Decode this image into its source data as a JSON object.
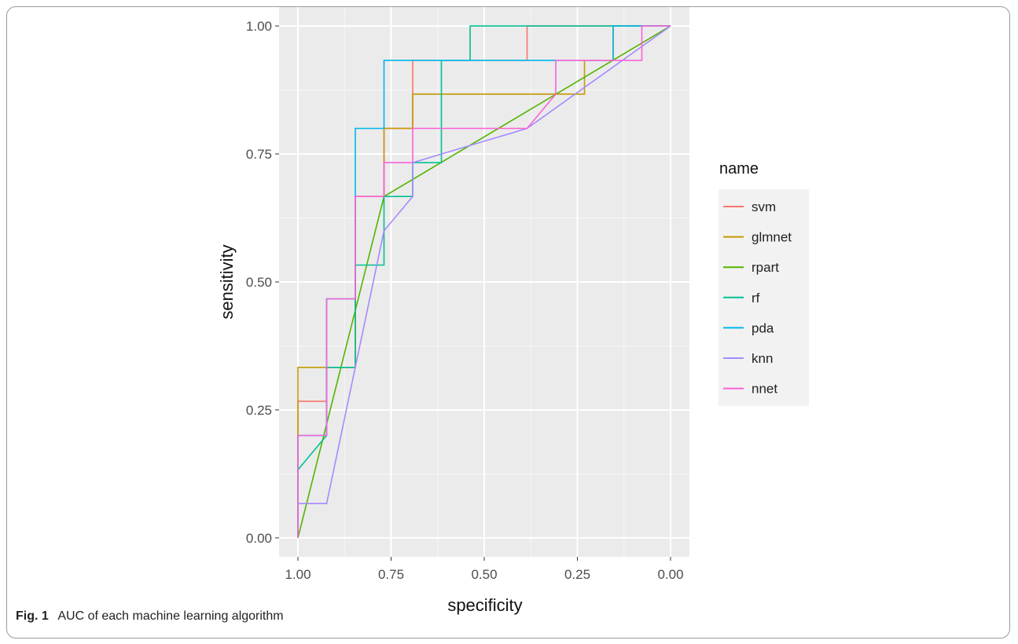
{
  "caption": {
    "label": "Fig. 1",
    "text": "AUC of each machine learning algorithm"
  },
  "chart_data": {
    "type": "line",
    "xlabel": "specificity",
    "ylabel": "sensitivity",
    "xlim": [
      1.0,
      0.0
    ],
    "ylim": [
      0.0,
      1.0
    ],
    "x_reversed": true,
    "grid": true,
    "x_ticks": [
      {
        "value": 1.0,
        "label": "1.00"
      },
      {
        "value": 0.75,
        "label": "0.75"
      },
      {
        "value": 0.5,
        "label": "0.50"
      },
      {
        "value": 0.25,
        "label": "0.25"
      },
      {
        "value": 0.0,
        "label": "0.00"
      }
    ],
    "y_ticks": [
      {
        "value": 0.0,
        "label": "0.00"
      },
      {
        "value": 0.25,
        "label": "0.25"
      },
      {
        "value": 0.5,
        "label": "0.50"
      },
      {
        "value": 0.75,
        "label": "0.75"
      },
      {
        "value": 1.0,
        "label": "1.00"
      }
    ],
    "legend": {
      "title": "name",
      "position": "right"
    },
    "series": [
      {
        "name": "svm",
        "color": "#F8766D",
        "points": [
          [
            1.0,
            0.0
          ],
          [
            1.0,
            0.267
          ],
          [
            0.923,
            0.267
          ],
          [
            0.923,
            0.333
          ],
          [
            0.846,
            0.333
          ],
          [
            0.846,
            0.667
          ],
          [
            0.769,
            0.667
          ],
          [
            0.769,
            0.8
          ],
          [
            0.692,
            0.8
          ],
          [
            0.692,
            0.933
          ],
          [
            0.385,
            0.933
          ],
          [
            0.385,
            1.0
          ],
          [
            0.0,
            1.0
          ]
        ]
      },
      {
        "name": "glmnet",
        "color": "#C49A00",
        "points": [
          [
            1.0,
            0.0
          ],
          [
            1.0,
            0.333
          ],
          [
            0.846,
            0.333
          ],
          [
            0.846,
            0.667
          ],
          [
            0.769,
            0.667
          ],
          [
            0.769,
            0.8
          ],
          [
            0.692,
            0.8
          ],
          [
            0.692,
            0.867
          ],
          [
            0.231,
            0.867
          ],
          [
            0.231,
            0.933
          ],
          [
            0.154,
            0.933
          ],
          [
            0.154,
            1.0
          ],
          [
            0.0,
            1.0
          ]
        ]
      },
      {
        "name": "rpart",
        "color": "#53B400",
        "points": [
          [
            1.0,
            0.0
          ],
          [
            0.769,
            0.667
          ],
          [
            0.0,
            1.0
          ]
        ]
      },
      {
        "name": "rf",
        "color": "#00C094",
        "points": [
          [
            1.0,
            0.133
          ],
          [
            0.923,
            0.2
          ],
          [
            0.923,
            0.333
          ],
          [
            0.846,
            0.333
          ],
          [
            0.846,
            0.533
          ],
          [
            0.769,
            0.533
          ],
          [
            0.769,
            0.667
          ],
          [
            0.692,
            0.667
          ],
          [
            0.692,
            0.733
          ],
          [
            0.615,
            0.733
          ],
          [
            0.615,
            0.933
          ],
          [
            0.538,
            0.933
          ],
          [
            0.538,
            1.0
          ],
          [
            0.0,
            1.0
          ]
        ]
      },
      {
        "name": "pda",
        "color": "#00B6EB",
        "points": [
          [
            1.0,
            0.0
          ],
          [
            1.0,
            0.2
          ],
          [
            0.923,
            0.2
          ],
          [
            0.923,
            0.467
          ],
          [
            0.846,
            0.467
          ],
          [
            0.846,
            0.8
          ],
          [
            0.769,
            0.8
          ],
          [
            0.769,
            0.933
          ],
          [
            0.154,
            0.933
          ],
          [
            0.154,
            1.0
          ],
          [
            0.0,
            1.0
          ]
        ]
      },
      {
        "name": "knn",
        "color": "#A58AFF",
        "points": [
          [
            1.0,
            0.067
          ],
          [
            0.923,
            0.067
          ],
          [
            0.769,
            0.6
          ],
          [
            0.692,
            0.667
          ],
          [
            0.692,
            0.733
          ],
          [
            0.385,
            0.8
          ],
          [
            0.0,
            1.0
          ]
        ]
      },
      {
        "name": "nnet",
        "color": "#FB61D7",
        "points": [
          [
            1.0,
            0.0
          ],
          [
            1.0,
            0.2
          ],
          [
            0.923,
            0.2
          ],
          [
            0.923,
            0.467
          ],
          [
            0.846,
            0.467
          ],
          [
            0.846,
            0.667
          ],
          [
            0.769,
            0.667
          ],
          [
            0.769,
            0.733
          ],
          [
            0.692,
            0.733
          ],
          [
            0.692,
            0.8
          ],
          [
            0.385,
            0.8
          ],
          [
            0.308,
            0.867
          ],
          [
            0.308,
            0.933
          ],
          [
            0.077,
            0.933
          ],
          [
            0.077,
            1.0
          ],
          [
            0.0,
            1.0
          ]
        ]
      }
    ]
  }
}
